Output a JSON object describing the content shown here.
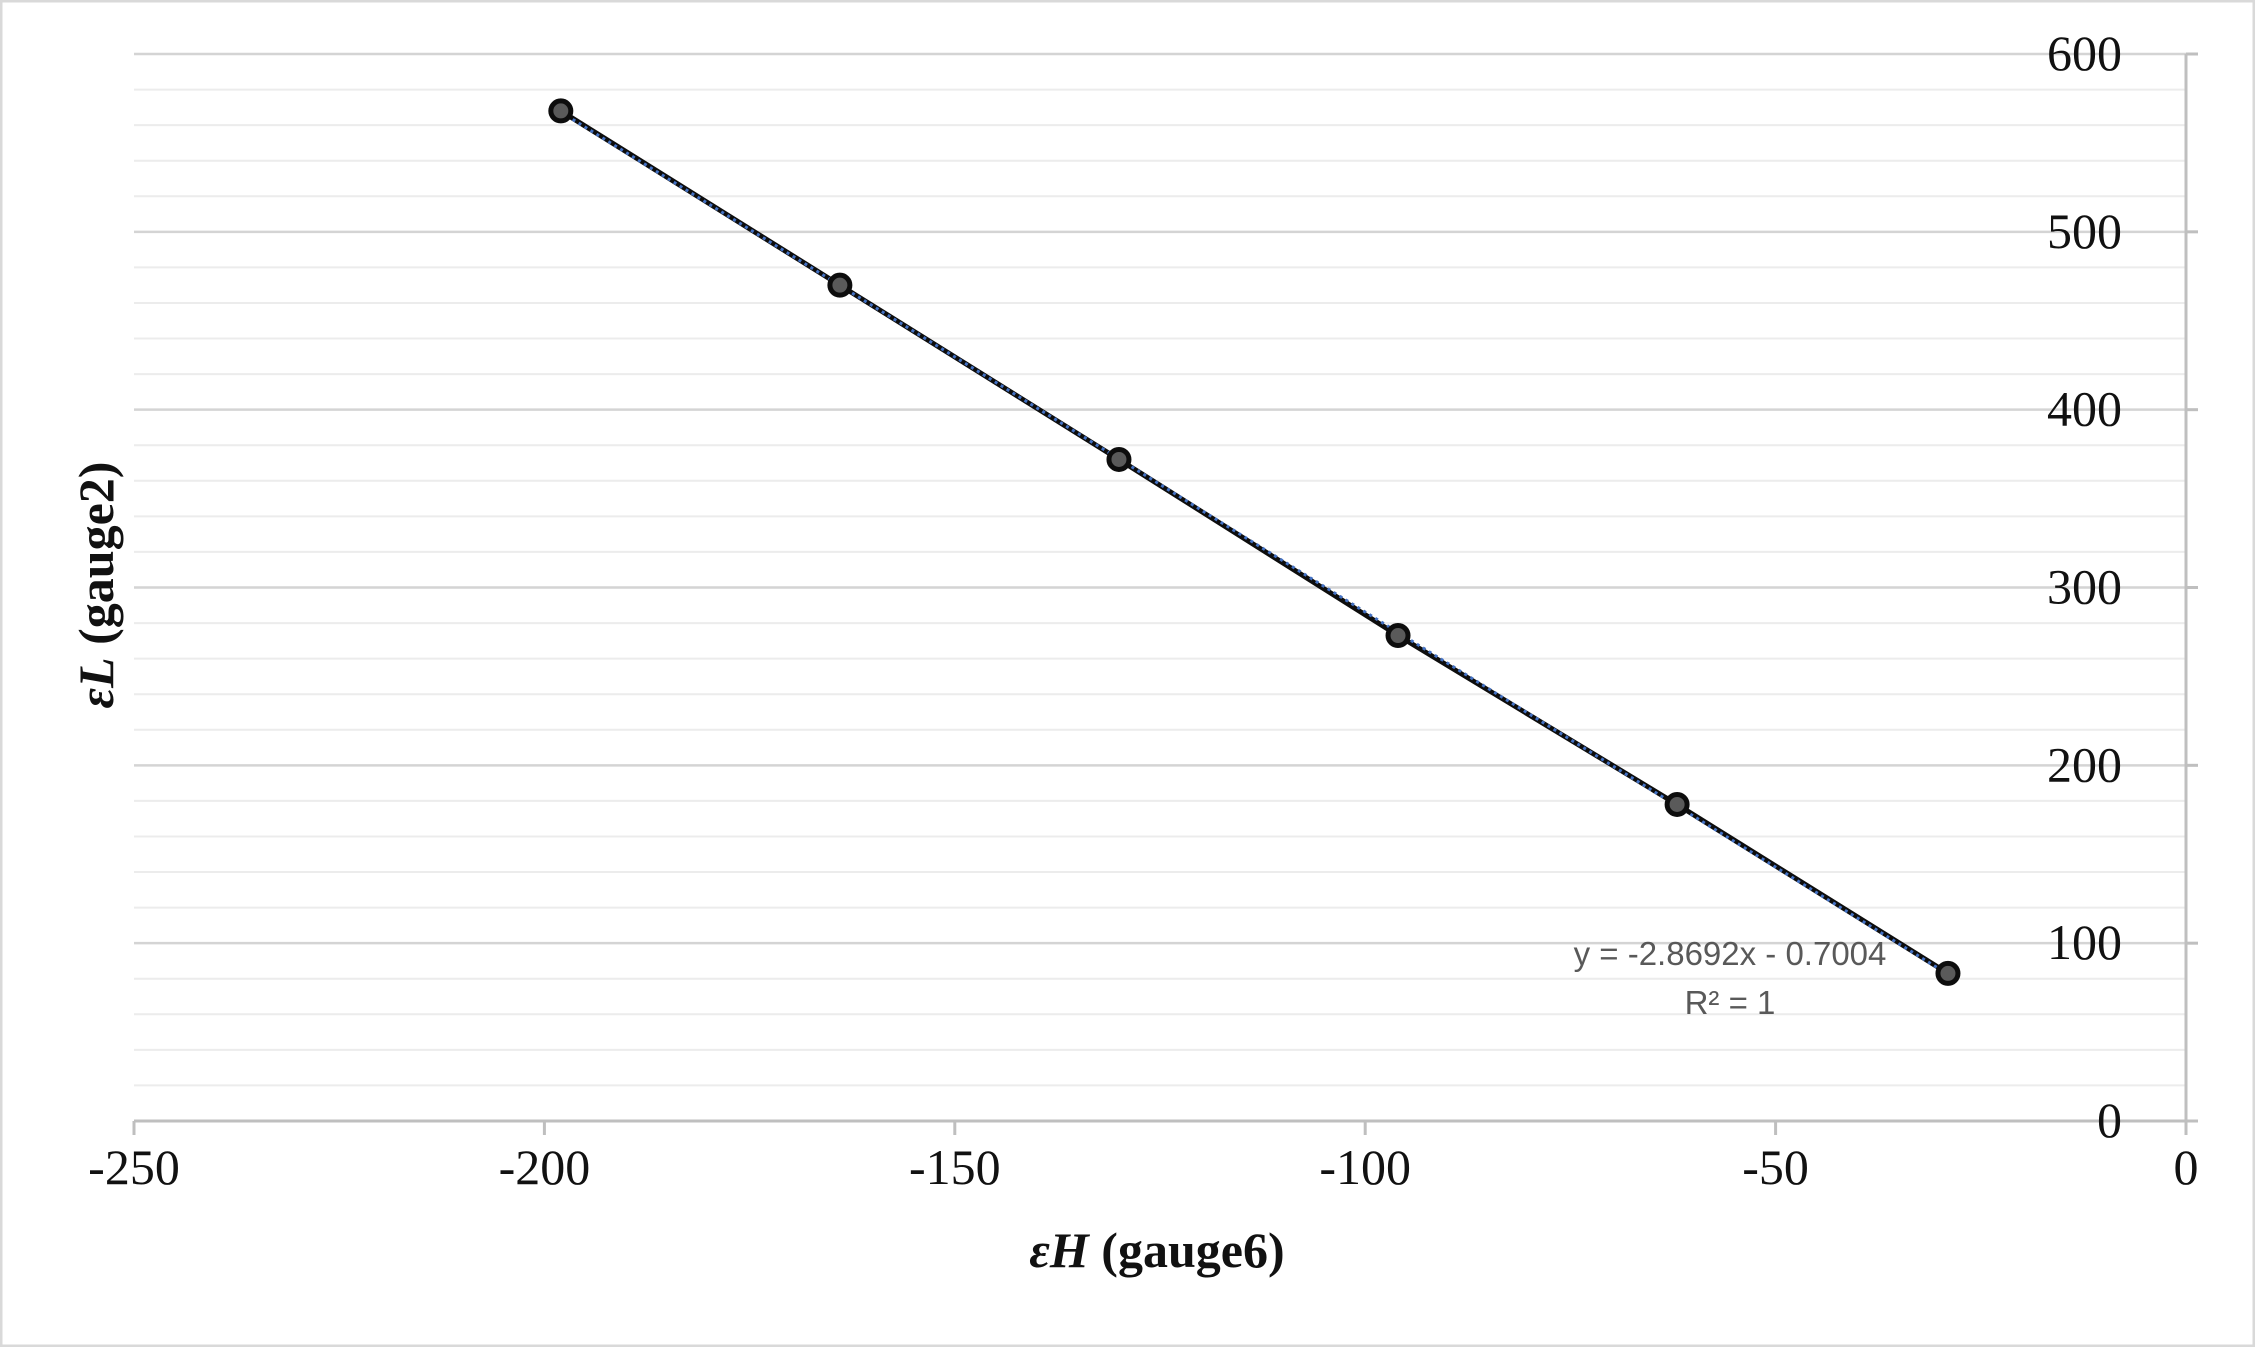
{
  "chart_data": {
    "type": "scatter",
    "title": "",
    "xlabel": {
      "symbol": "εH",
      "text": " (gauge6)"
    },
    "ylabel": {
      "symbol": "εL",
      "text": " (gauge2)"
    },
    "xlim": [
      -250,
      0
    ],
    "ylim": [
      0,
      600
    ],
    "x_ticks": [
      -250,
      -200,
      -150,
      -100,
      -50,
      0
    ],
    "y_ticks": [
      0,
      100,
      200,
      300,
      400,
      500,
      600
    ],
    "y_axis_position": "right",
    "grid": {
      "major": true,
      "minor": true,
      "axis": "y"
    },
    "series": [
      {
        "x": [
          -198,
          -164,
          -130,
          -96,
          -62,
          -29
        ],
        "y": [
          568,
          470,
          372,
          273,
          178,
          83
        ],
        "marker": "circle",
        "color": "#0d0d0d",
        "line_color": "#0d0d0d"
      }
    ],
    "trendline": {
      "type": "linear",
      "slope": -2.8692,
      "intercept": -0.7004,
      "color": "#4472c4",
      "style": "dotted",
      "equation": "y = -2.8692x - 0.7004",
      "r_squared": "R² = 1"
    }
  }
}
